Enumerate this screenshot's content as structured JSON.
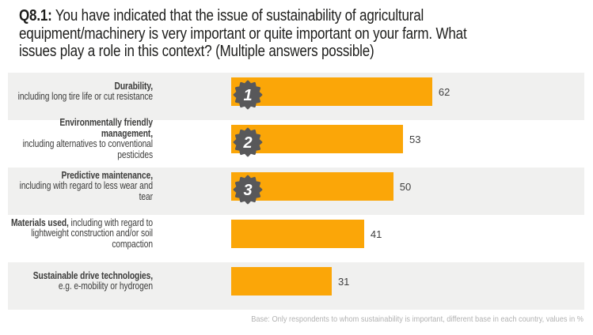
{
  "title": {
    "prefix": "Q8.1:",
    "rest": " You have indicated that the issue of sustainability of agricultural\nequipment/machinery is very important or quite important on your farm. What\nissues play a role in this context? (Multiple answers possible)"
  },
  "chart_data": {
    "type": "bar",
    "orientation": "horizontal",
    "title": "Q8.1: You have indicated that the issue of sustainability of agricultural equipment/machinery is very important or quite important on your farm. What issues play a role in this context? (Multiple answers possible)",
    "categories": [
      "Durability, including long tire life or cut resistance",
      "Environmentally friendly management, including alternatives to conventional pesticides",
      "Predictive maintenance, including with regard to less wear and tear",
      "Materials used, including with regard to lightweight construction and/or soil compaction",
      "Sustainable drive technologies, e.g. e-mobility or hydrogen"
    ],
    "values": [
      62,
      53,
      50,
      41,
      31
    ],
    "unit": "%",
    "xlim": [
      0,
      100
    ],
    "rank_badges": [
      "1",
      "2",
      "3"
    ],
    "legend": "none",
    "grid": "off"
  },
  "rows": [
    {
      "label_bold": "Durability,",
      "label_rest": "including long tire life or cut resistance"
    },
    {
      "label_bold": "Environmentally friendly management,",
      "label_rest": "including alternatives to conventional pesticides"
    },
    {
      "label_bold": "Predictive maintenance,",
      "label_rest": "including with regard to less wear and tear"
    },
    {
      "label_bold": "Materials used,",
      "label_rest": " including with regard to lightweight construction and/or soil compaction"
    },
    {
      "label_bold": "Sustainable drive technologies,",
      "label_rest": "e.g. e-mobility or hydrogen"
    }
  ],
  "footer": {
    "note": "Base: Only respondents to whom sustainability is important, different base in each country, values in %"
  },
  "colors": {
    "bar": "#FBA608",
    "badge": "#58585A",
    "stripe": "#F0F0EF",
    "title_text": "#1D1D1B",
    "label_text": "#3C3C3B",
    "value_text": "#3F3F3F",
    "note_text": "#B2B2B2"
  }
}
